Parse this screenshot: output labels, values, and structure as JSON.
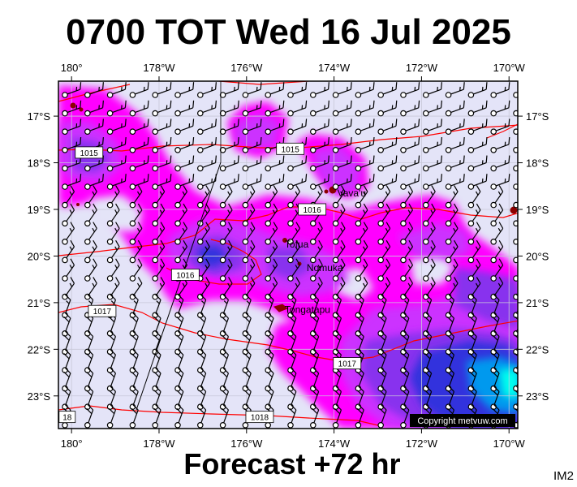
{
  "title": "0700 TOT Wed 16 Jul 2025",
  "footer": "Forecast +72 hr",
  "image_code": "IM2",
  "copyright": "Copyright metvuw.com",
  "axes": {
    "lon_ticks": [
      {
        "lon": 180,
        "label": "180°"
      },
      {
        "lon": 182,
        "label": "178°W"
      },
      {
        "lon": 184,
        "label": "176°W"
      },
      {
        "lon": 186,
        "label": "174°W"
      },
      {
        "lon": 188,
        "label": "172°W"
      },
      {
        "lon": 190,
        "label": "170°W"
      }
    ],
    "lat_ticks": [
      {
        "lat": -17,
        "label": "17°S"
      },
      {
        "lat": -18,
        "label": "18°S"
      },
      {
        "lat": -19,
        "label": "19°S"
      },
      {
        "lat": -20,
        "label": "20°S"
      },
      {
        "lat": -21,
        "label": "21°S"
      },
      {
        "lat": -22,
        "label": "22°S"
      },
      {
        "lat": -23,
        "label": "23°S"
      }
    ],
    "lon_range": [
      179.7,
      190.2
    ],
    "lat_range": [
      -23.7,
      -16.25
    ]
  },
  "places": [
    {
      "name": "Vava'u",
      "lon": 186.0,
      "lat": -18.65
    },
    {
      "name": "Tofua",
      "lon": 184.8,
      "lat": -19.75
    },
    {
      "name": "Nomuka",
      "lon": 185.3,
      "lat": -20.25
    },
    {
      "name": "Tongatapu",
      "lon": 184.8,
      "lat": -21.15
    }
  ],
  "isobars": [
    {
      "label": "1015",
      "label_lon": 180.4,
      "label_lat": -17.78
    },
    {
      "label": "1015",
      "label_lon": 185.0,
      "label_lat": -17.7
    },
    {
      "label": "1016",
      "label_lon": 185.5,
      "label_lat": -19.0
    },
    {
      "label": "1016",
      "label_lon": 182.6,
      "label_lat": -20.4
    },
    {
      "label": "1017",
      "label_lon": 180.7,
      "label_lat": -21.18
    },
    {
      "label": "1017",
      "label_lon": 186.3,
      "label_lat": -22.3
    },
    {
      "label": "1018",
      "label_lon": 184.3,
      "label_lat": -23.45
    },
    {
      "label": "18",
      "label_lon": 179.9,
      "label_lat": -23.45
    }
  ],
  "colors": {
    "ocean": "#e4e4f8",
    "rain_light": "#ff00ff",
    "rain_medium": "#cc33ff",
    "rain_heavy": "#8833ee",
    "rain_very_heavy": "#3333dd",
    "rain_extreme": "#0099ee",
    "rain_max": "#00ffee",
    "isobar": "#ff0000",
    "coast": "#8B0000"
  }
}
